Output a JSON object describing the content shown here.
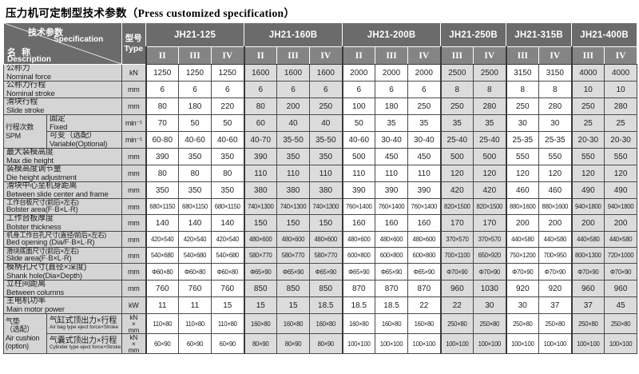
{
  "title": "压力机可定制型技术参数（Press customized specification）",
  "colors": {
    "header_bg": "#6b6b6b",
    "subheader_bg": "#848484",
    "label_bg": "#d5d5d5",
    "shade_bg": "#dcdcdc",
    "border": "#4a4a4a",
    "header_text": "#ffffff"
  },
  "header": {
    "spec_zh": "技术参数",
    "spec_en": "Specification",
    "desc_zh": "名 称",
    "desc_en": "Description",
    "type_zh": "型号",
    "type_en": "Type",
    "models": [
      {
        "name": "JH21-125",
        "variants": [
          "II",
          "III",
          "IV"
        ]
      },
      {
        "name": "JH21-160B",
        "variants": [
          "II",
          "III",
          "IV"
        ]
      },
      {
        "name": "JH21-200B",
        "variants": [
          "II",
          "III",
          "IV"
        ]
      },
      {
        "name": "JH21-250B",
        "variants": [
          "III",
          "IV"
        ]
      },
      {
        "name": "JH21-315B",
        "variants": [
          "III",
          "IV"
        ]
      },
      {
        "name": "JH21-400B",
        "variants": [
          "III",
          "IV"
        ]
      }
    ]
  },
  "rows": [
    {
      "type": "simple",
      "zh": "公称力",
      "en": "Nominal force",
      "unit": "kN",
      "values": [
        1250,
        1250,
        1250,
        1600,
        1600,
        1600,
        2000,
        2000,
        2000,
        2500,
        2500,
        3150,
        3150,
        4000,
        4000
      ]
    },
    {
      "type": "simple",
      "zh": "公称力行程",
      "en": "Nominal stroke",
      "unit": "mm",
      "values": [
        6,
        6,
        6,
        6,
        6,
        6,
        6,
        6,
        6,
        8,
        8,
        8,
        8,
        10,
        10
      ]
    },
    {
      "type": "simple",
      "zh": "滑块行程",
      "en": "Slide stroke",
      "unit": "mm",
      "values": [
        80,
        180,
        220,
        80,
        200,
        250,
        100,
        180,
        250,
        250,
        280,
        250,
        280,
        250,
        280
      ]
    },
    {
      "type": "group-start",
      "group": {
        "lines": [
          "行程次数",
          "SPM"
        ],
        "rowspan": 2
      },
      "zh": "固定",
      "en": "Fixed",
      "unit": "min⁻¹",
      "values": [
        70,
        50,
        50,
        60,
        40,
        40,
        50,
        35,
        35,
        35,
        35,
        30,
        30,
        25,
        25
      ]
    },
    {
      "type": "group-cont",
      "zh": "可变（选配）",
      "en": "Variable(Optional)",
      "unit": "min⁻¹",
      "values": [
        "60-80",
        "40-60",
        "40-60",
        "40-70",
        "35-50",
        "35-50",
        "40-60",
        "30-40",
        "30-40",
        "25-40",
        "25-40",
        "25-35",
        "25-35",
        "20-30",
        "20-30"
      ]
    },
    {
      "type": "simple",
      "zh": "最大装模高度",
      "en": "Max die height",
      "unit": "mm",
      "values": [
        390,
        350,
        350,
        390,
        350,
        350,
        500,
        450,
        450,
        500,
        500,
        550,
        550,
        550,
        550
      ]
    },
    {
      "type": "simple",
      "zh": "装模高度调节量",
      "en": "Die height adjustment",
      "unit": "mm",
      "values": [
        80,
        80,
        80,
        110,
        110,
        110,
        110,
        110,
        110,
        120,
        120,
        120,
        120,
        120,
        120
      ]
    },
    {
      "type": "simple",
      "zh": "滑块中心至机身距离",
      "en": "Between slide center and frame",
      "unit": "mm",
      "values": [
        350,
        350,
        350,
        380,
        380,
        380,
        390,
        390,
        390,
        420,
        420,
        460,
        460,
        490,
        490
      ]
    },
    {
      "type": "simple",
      "zh": "工作台板尺寸(前后×左右)",
      "en": "Bolster area(F·B×L·R)",
      "unit": "mm",
      "values": [
        "680×1150",
        "680×1150",
        "680×1150",
        "740×1300",
        "740×1300",
        "740×1300",
        "760×1400",
        "760×1400",
        "760×1400",
        "820×1500",
        "820×1500",
        "880×1600",
        "880×1600",
        "940×1800",
        "940×1800"
      ]
    },
    {
      "type": "simple",
      "zh": "工作台板厚度",
      "en": "Bolster thickness",
      "unit": "mm",
      "values": [
        140,
        140,
        140,
        150,
        150,
        150,
        160,
        160,
        160,
        170,
        170,
        200,
        200,
        200,
        200
      ]
    },
    {
      "type": "simple",
      "zh": "机身工作台孔尺寸(直径/前后×左右)",
      "en": "Bed opening (Dia/F·B×L·R)",
      "unit": "mm",
      "values": [
        "420×540",
        "420×540",
        "420×540",
        "480×600",
        "480×600",
        "480×600",
        "480×600",
        "480×600",
        "480×600",
        "370×570",
        "370×570",
        "440×580",
        "440×580",
        "440×580",
        "440×580"
      ]
    },
    {
      "type": "simple",
      "zh": "滑块底面尺寸(前后×左右)",
      "en": "Slide area(F·B×L·R)",
      "unit": "mm",
      "values": [
        "540×680",
        "540×680",
        "540×680",
        "580×770",
        "580×770",
        "580×770",
        "600×800",
        "600×800",
        "600×800",
        "700×1100",
        "650×920",
        "750×1200",
        "700×950",
        "800×1300",
        "720×1000"
      ]
    },
    {
      "type": "simple",
      "zh": "模柄孔尺寸(直径×深度)",
      "en": "Shank hole(Dia×Depth)",
      "unit": "mm",
      "values": [
        "Φ60×80",
        "Φ60×80",
        "Φ60×80",
        "Φ65×90",
        "Φ65×90",
        "Φ65×90",
        "Φ65×90",
        "Φ65×90",
        "Φ65×90",
        "Φ70×90",
        "Φ70×90",
        "Φ70×90",
        "Φ70×90",
        "Φ70×90",
        "Φ70×90"
      ]
    },
    {
      "type": "simple",
      "zh": "立柱间距离",
      "en": "Between columns",
      "unit": "mm",
      "values": [
        760,
        760,
        760,
        850,
        850,
        850,
        870,
        870,
        870,
        960,
        1030,
        920,
        920,
        960,
        960
      ]
    },
    {
      "type": "simple",
      "zh": "主电机功率",
      "en": "Main motor power",
      "unit": "kW",
      "values": [
        11,
        11,
        15,
        15,
        15,
        18.5,
        18.5,
        18.5,
        22,
        22,
        30,
        30,
        37,
        37,
        45
      ]
    },
    {
      "type": "group-start",
      "group": {
        "lines": [
          "气垫",
          "（选配）",
          "Air cushion",
          "(option)"
        ],
        "rowspan": 2
      },
      "zh": "气缸式顶出力×行程",
      "en": "Air bag type eject force×Stroke",
      "unit": [
        "kN",
        "×",
        "mm"
      ],
      "values": [
        "110×80",
        "110×80",
        "110×80",
        "160×80",
        "160×80",
        "160×80",
        "160×80",
        "160×80",
        "160×80",
        "250×80",
        "250×80",
        "250×80",
        "250×80",
        "250×80",
        "250×80"
      ]
    },
    {
      "type": "group-cont",
      "zh": "气囊式顶出力×行程",
      "en": "Cylinder type eject force×Stroke",
      "unit": [
        "kN",
        "×",
        "mm"
      ],
      "values": [
        "60×90",
        "60×90",
        "60×90",
        "80×90",
        "80×90",
        "80×90",
        "100×100",
        "100×100",
        "100×100",
        "100×100",
        "100×100",
        "100×100",
        "100×100",
        "100×100",
        "100×100"
      ]
    }
  ]
}
